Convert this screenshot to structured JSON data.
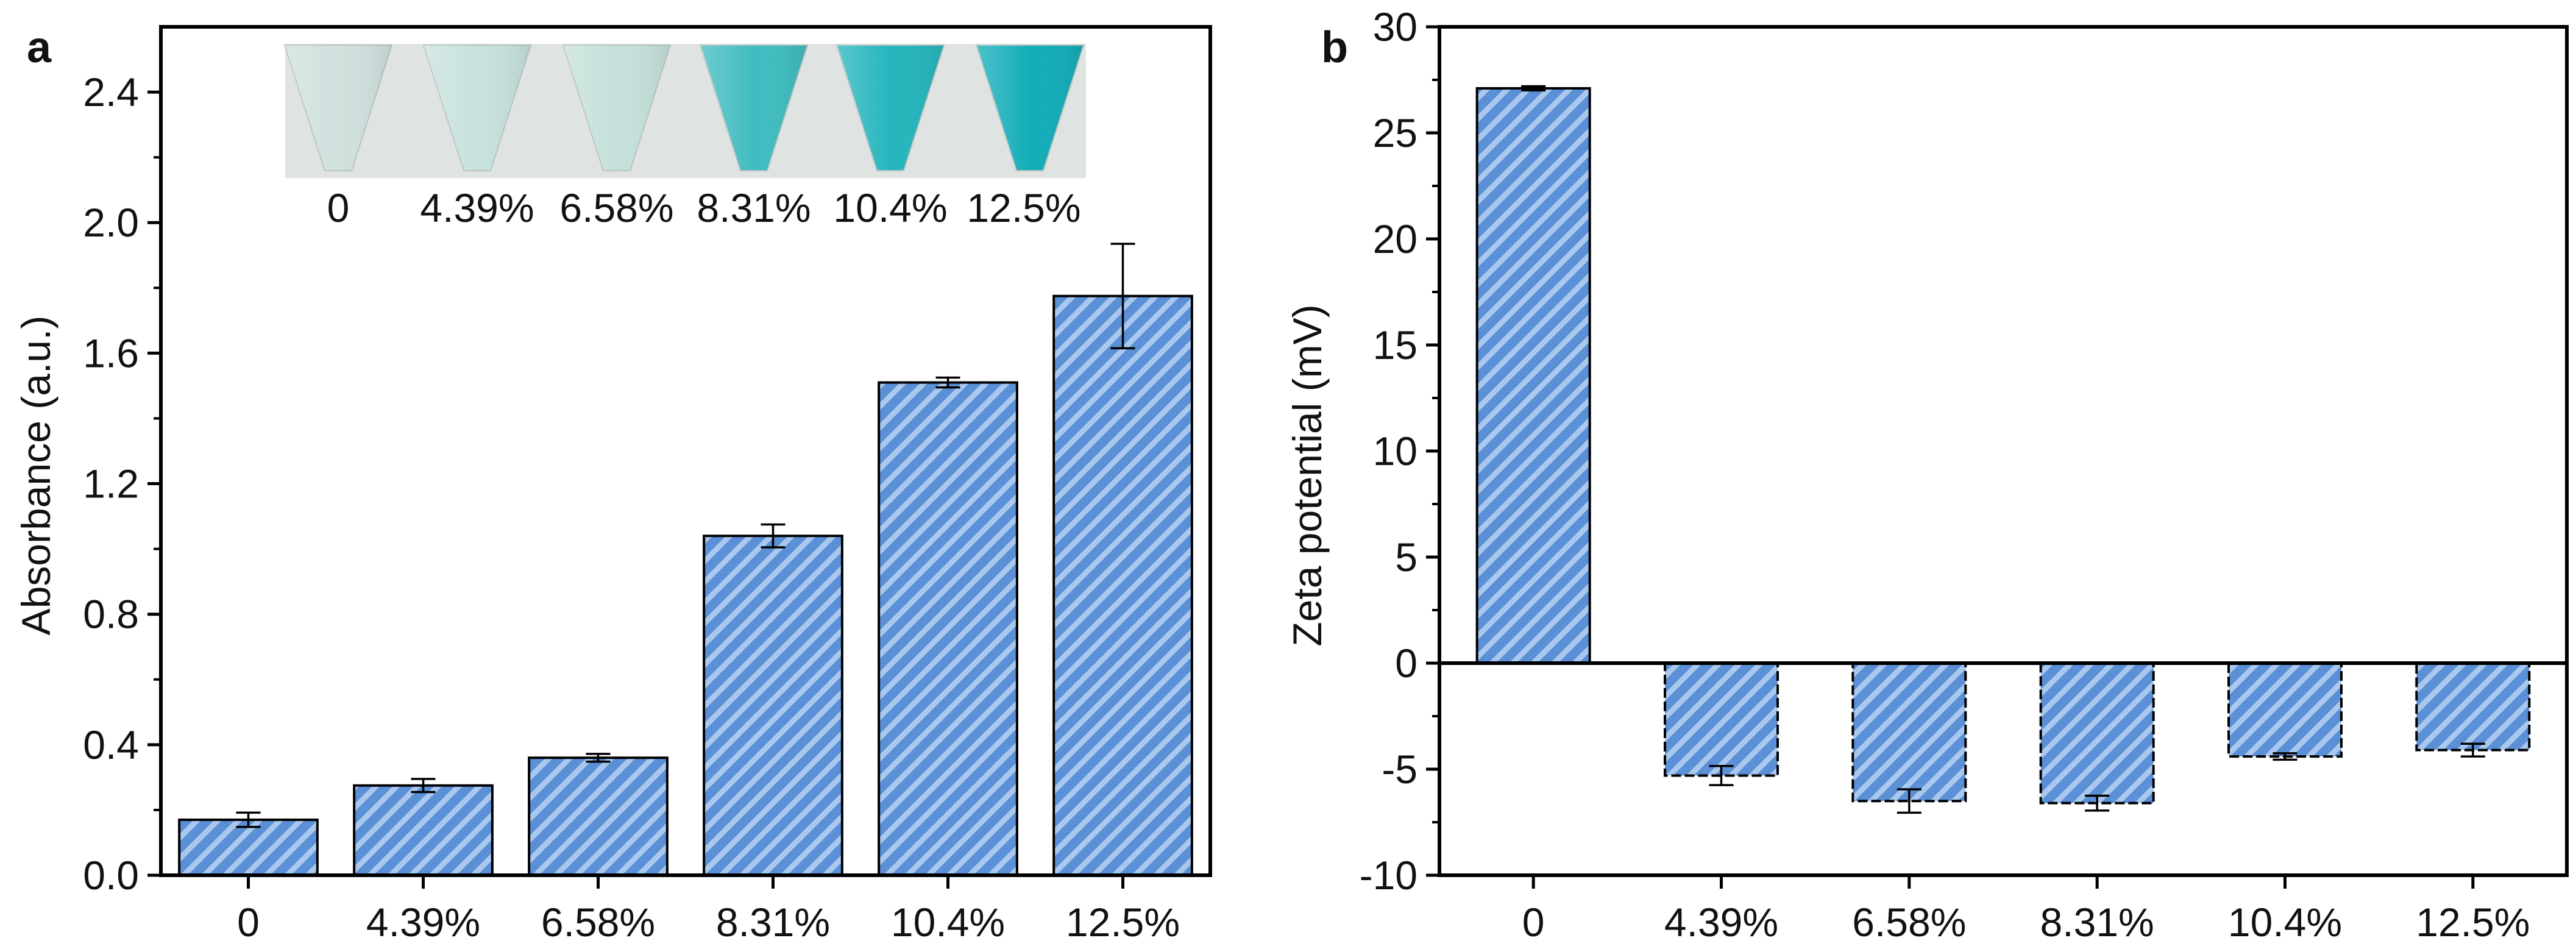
{
  "chart_data": [
    {
      "type": "bar",
      "panel_label": "a",
      "title": "",
      "xlabel": "",
      "ylabel": "Absorbance (a.u.)",
      "categories": [
        "0",
        "4.39%",
        "6.58%",
        "8.31%",
        "10.4%",
        "12.5%"
      ],
      "values": [
        0.17,
        0.275,
        0.36,
        1.04,
        1.51,
        1.775
      ],
      "errors": [
        0.022,
        0.02,
        0.012,
        0.035,
        0.015,
        0.16
      ],
      "ylim": [
        0,
        2.6
      ],
      "yticks": [
        0.0,
        0.4,
        0.8,
        1.2,
        1.6,
        2.0,
        2.4
      ],
      "ytick_labels": [
        "0.0",
        "0.4",
        "0.8",
        "1.2",
        "1.6",
        "2.0",
        "2.4"
      ],
      "grid": false,
      "bar_color": "#5b8fd6",
      "hatch_color": "#a9c8ee",
      "inset": {
        "kind": "photo",
        "labels": [
          "0",
          "4.39%",
          "6.58%",
          "8.31%",
          "10.4%",
          "12.5%"
        ],
        "tube_colors": [
          "#cfe0dd",
          "#c7e1dc",
          "#c5e0da",
          "#3fbcc0",
          "#25b6bd",
          "#12adb8"
        ],
        "background": "#dfe3e2"
      }
    },
    {
      "type": "bar",
      "panel_label": "b",
      "title": "",
      "xlabel": "",
      "ylabel": "Zeta potential (mV)",
      "categories": [
        "0",
        "4.39%",
        "6.58%",
        "8.31%",
        "10.4%",
        "12.5%"
      ],
      "values": [
        27.1,
        -5.3,
        -6.5,
        -6.6,
        -4.4,
        -4.1
      ],
      "errors": [
        0.1,
        0.45,
        0.55,
        0.35,
        0.15,
        0.3
      ],
      "ylim": [
        -10,
        30
      ],
      "yticks": [
        -10,
        -5,
        0,
        5,
        10,
        15,
        20,
        25,
        30
      ],
      "ytick_labels": [
        "-10",
        "-5",
        "0",
        "5",
        "10",
        "15",
        "20",
        "25",
        "30"
      ],
      "grid": false,
      "bar_color": "#5b8fd6",
      "hatch_color": "#a9c8ee"
    }
  ]
}
